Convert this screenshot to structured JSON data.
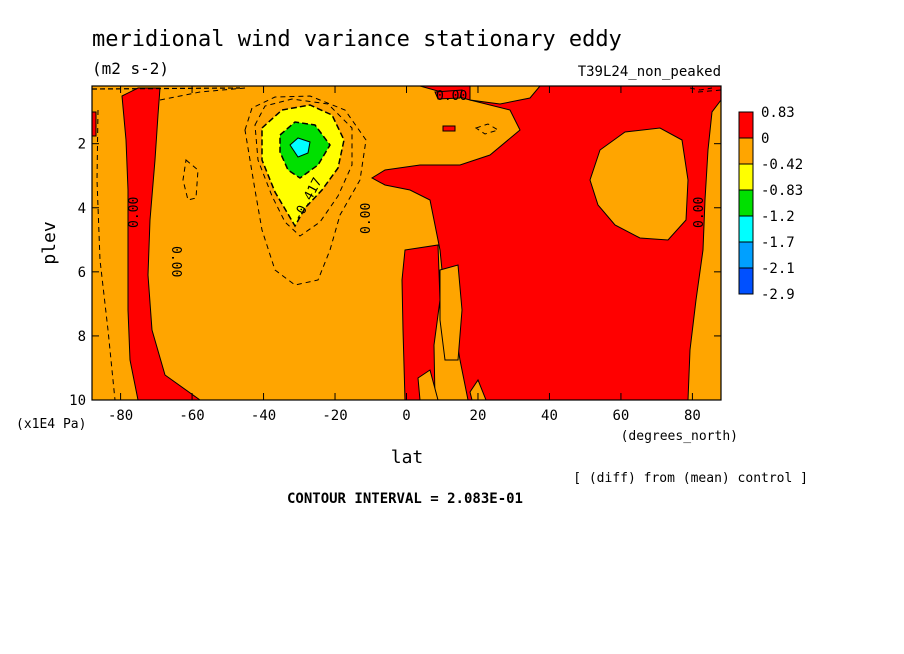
{
  "chart_data": {
    "type": "heatmap",
    "title": "meridional wind variance  stationary eddy",
    "subtitle": "(m2 s-2)",
    "run_label": "T39L24_non_peaked",
    "xlabel": "lat",
    "x_unit": "(degrees_north)",
    "ylabel": "plev",
    "y_unit": "(x1E4 Pa)",
    "xlim": [
      -88,
      88
    ],
    "ylim": [
      10,
      0.2
    ],
    "y_inverted": true,
    "x_ticks": [
      "-80",
      "-60",
      "-40",
      "-20",
      "0",
      "20",
      "40",
      "60",
      "80"
    ],
    "y_ticks": [
      "2",
      "4",
      "6",
      "8",
      "10"
    ],
    "legend": {
      "placement": "right",
      "levels": [
        "0.83",
        "0",
        "-0.42",
        "-0.83",
        "-1.2",
        "-1.7",
        "-2.1",
        "-2.9"
      ],
      "colors": [
        "#ff0000",
        "#ffa500",
        "#ffff00",
        "#00e000",
        "#00ffff",
        "#00a0ff",
        "#0050ff"
      ]
    },
    "contour_labels": [
      "0.00",
      "0.00",
      "0.00",
      "0.00",
      "0.00",
      "-0.417"
    ],
    "features": [
      {
        "kind": "minimum",
        "lat": -31,
        "plev": 2.0,
        "value_range": "-1.7 to -1.2"
      },
      {
        "kind": "positive_region",
        "lat_range": [
          -10,
          88
        ],
        "plev_range": [
          0.2,
          10
        ]
      },
      {
        "kind": "positive_band",
        "lat_range": [
          -82,
          -68
        ],
        "plev_range": [
          0.2,
          10
        ]
      }
    ],
    "note": "[ (diff) from (mean) control ]",
    "contour_interval": "CONTOUR INTERVAL = 2.083E-01",
    "grid": false
  }
}
